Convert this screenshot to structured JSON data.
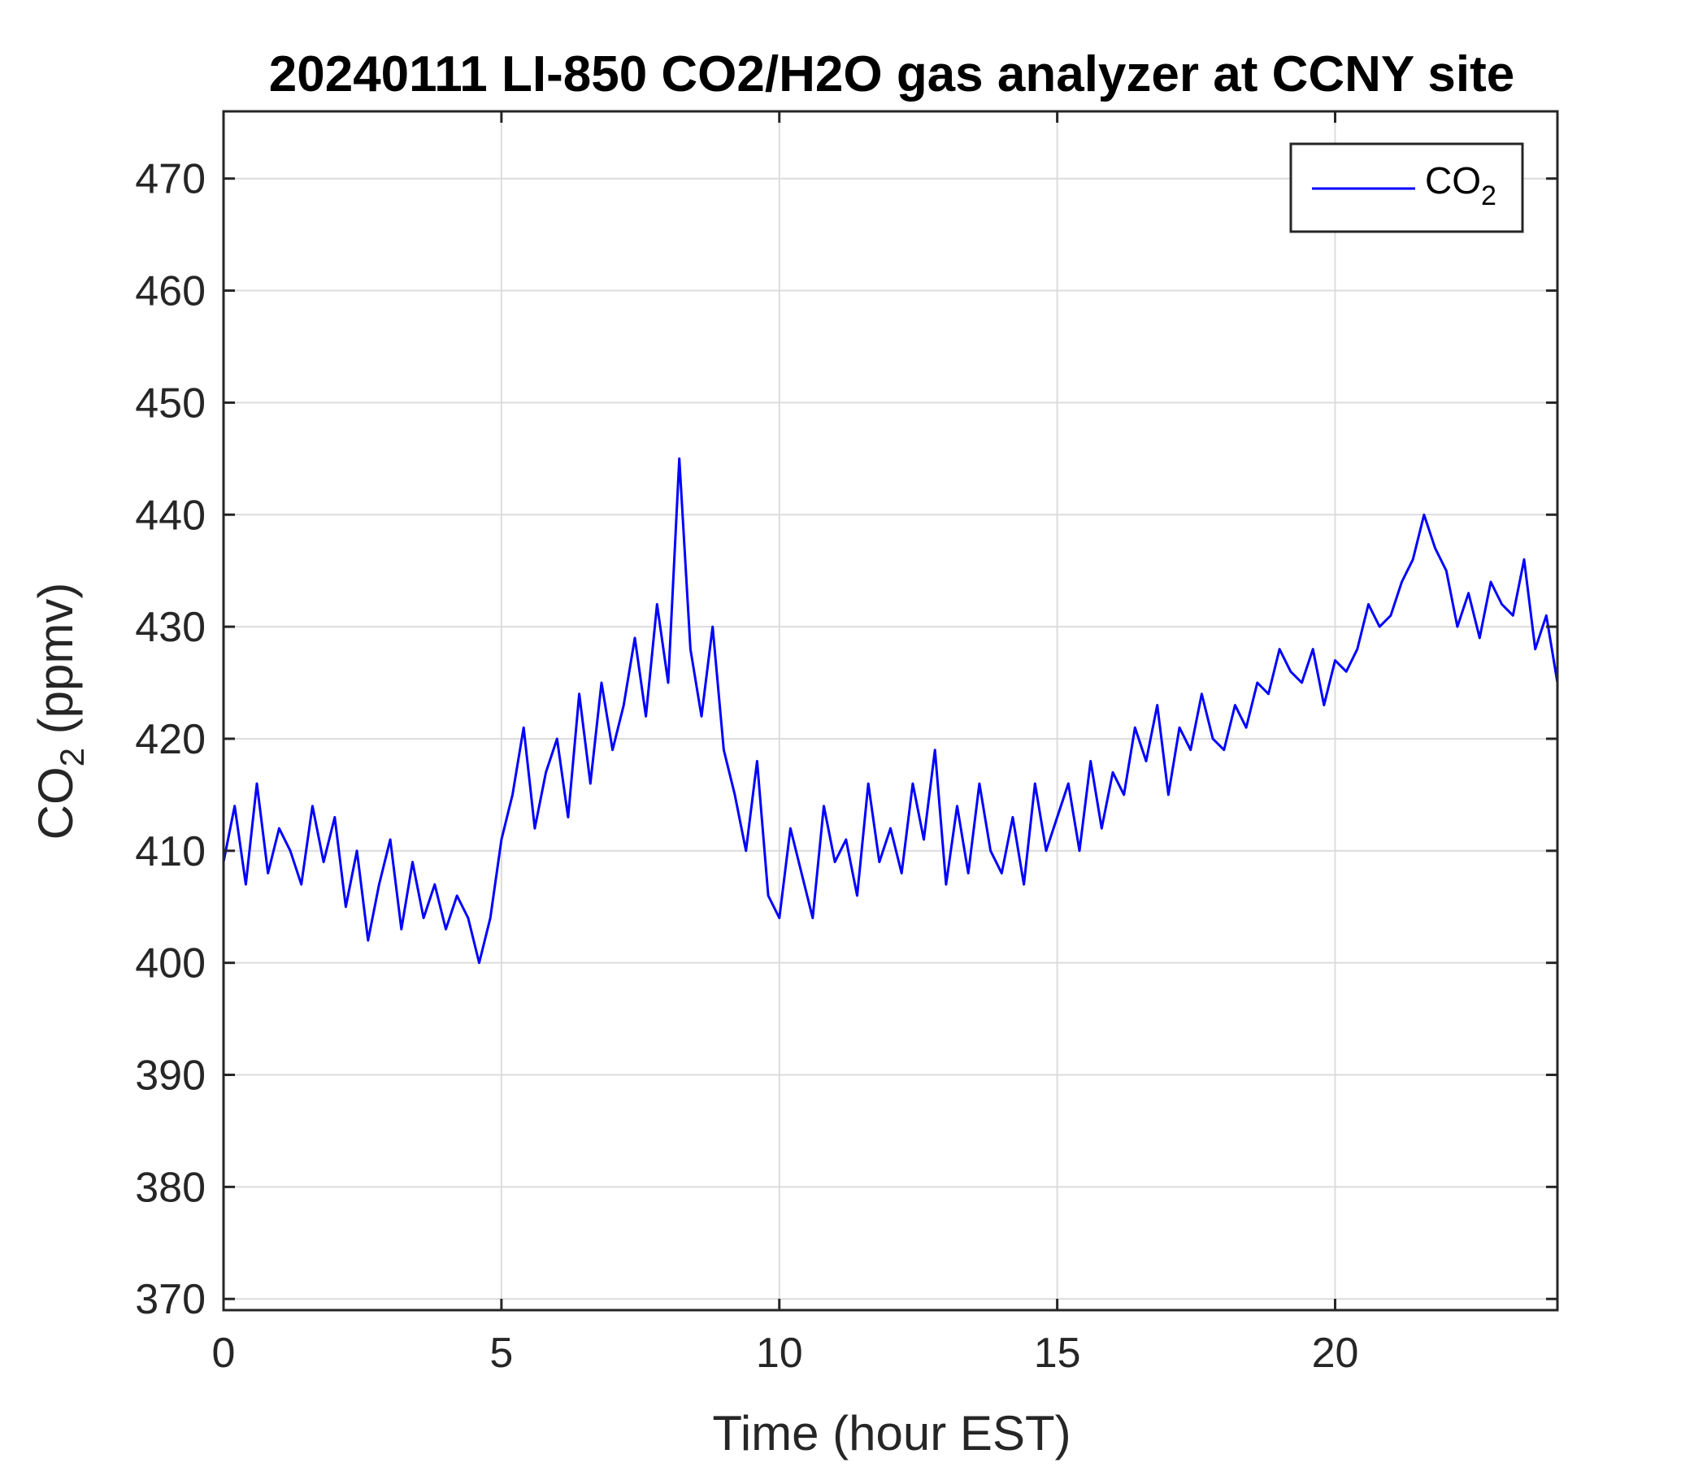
{
  "chart_data": {
    "type": "line",
    "title": "20240111 LI-850 CO2/H2O gas analyzer at CCNY site",
    "xlabel": "Time (hour EST)",
    "ylabel_main": "CO",
    "ylabel_sub": "2",
    "ylabel_unit": " (ppmv)",
    "xlim": [
      0,
      24
    ],
    "ylim": [
      369,
      476
    ],
    "xticks": [
      0,
      5,
      10,
      15,
      20
    ],
    "yticks": [
      370,
      380,
      390,
      400,
      410,
      420,
      430,
      440,
      450,
      460,
      470
    ],
    "grid": true,
    "legend_position": "top-right",
    "legend": {
      "main": "CO",
      "sub": "2"
    },
    "series": [
      {
        "name": "CO2",
        "color": "#0000ff",
        "x": [
          0.0,
          0.2,
          0.4,
          0.6,
          0.8,
          1.0,
          1.2,
          1.4,
          1.6,
          1.8,
          2.0,
          2.2,
          2.4,
          2.6,
          2.8,
          3.0,
          3.2,
          3.4,
          3.6,
          3.8,
          4.0,
          4.2,
          4.4,
          4.6,
          4.8,
          5.0,
          5.2,
          5.4,
          5.6,
          5.8,
          6.0,
          6.2,
          6.4,
          6.6,
          6.8,
          7.0,
          7.2,
          7.4,
          7.6,
          7.8,
          8.0,
          8.2,
          8.4,
          8.6,
          8.8,
          9.0,
          9.2,
          9.4,
          9.6,
          9.8,
          10.0,
          10.2,
          10.4,
          10.6,
          10.8,
          11.0,
          11.2,
          11.4,
          11.6,
          11.8,
          12.0,
          12.2,
          12.4,
          12.6,
          12.8,
          13.0,
          13.2,
          13.4,
          13.6,
          13.8,
          14.0,
          14.2,
          14.4,
          14.6,
          14.8,
          15.0,
          15.2,
          15.4,
          15.6,
          15.8,
          16.0,
          16.2,
          16.4,
          16.6,
          16.8,
          17.0,
          17.2,
          17.4,
          17.6,
          17.8,
          18.0,
          18.2,
          18.4,
          18.6,
          18.8,
          19.0,
          19.2,
          19.4,
          19.6,
          19.8,
          20.0,
          20.2,
          20.4,
          20.6,
          20.8,
          21.0,
          21.2,
          21.4,
          21.6,
          21.8,
          22.0,
          22.2,
          22.4,
          22.6,
          22.8,
          23.0,
          23.2,
          23.4,
          23.6,
          23.8,
          24.0
        ],
        "y": [
          409,
          414,
          407,
          416,
          408,
          412,
          410,
          407,
          414,
          409,
          413,
          405,
          410,
          402,
          407,
          411,
          403,
          409,
          404,
          407,
          403,
          406,
          404,
          400,
          404,
          411,
          415,
          421,
          412,
          417,
          420,
          413,
          424,
          416,
          425,
          419,
          423,
          429,
          422,
          432,
          425,
          445,
          428,
          422,
          430,
          419,
          415,
          410,
          418,
          406,
          404,
          412,
          408,
          404,
          414,
          409,
          411,
          406,
          416,
          409,
          412,
          408,
          416,
          411,
          419,
          407,
          414,
          408,
          416,
          410,
          408,
          413,
          407,
          416,
          410,
          413,
          416,
          410,
          418,
          412,
          417,
          415,
          421,
          418,
          423,
          415,
          421,
          419,
          424,
          420,
          419,
          423,
          421,
          425,
          424,
          428,
          426,
          425,
          428,
          423,
          427,
          426,
          428,
          432,
          430,
          431,
          434,
          436,
          440,
          437,
          435,
          430,
          433,
          429,
          434,
          432,
          431,
          436,
          428,
          431,
          425
        ]
      }
    ]
  }
}
